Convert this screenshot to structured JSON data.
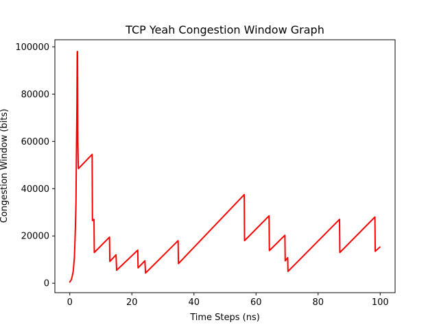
{
  "chart_data": {
    "type": "line",
    "title": "TCP Yeah Congestion Window Graph",
    "xlabel": "Time Steps (ns)",
    "ylabel": "Congestion Window (bits)",
    "xlim": [
      -4.8,
      104.8
    ],
    "ylim": [
      -4000,
      103000
    ],
    "xticks": [
      0,
      20,
      40,
      60,
      80,
      100
    ],
    "yticks": [
      0,
      20000,
      40000,
      60000,
      80000,
      100000
    ],
    "grid": false,
    "legend": "none",
    "series": [
      {
        "color": "#ff0000",
        "x": [
          0.0,
          0.5,
          0.8,
          1.1,
          1.3,
          1.5,
          1.6,
          1.8,
          2.0,
          2.1,
          2.3,
          2.4,
          2.5,
          2.6,
          2.7,
          2.75,
          2.8,
          7.2,
          7.3,
          7.8,
          7.9,
          12.8,
          12.9,
          14.9,
          15.1,
          21.9,
          22.0,
          24.2,
          24.4,
          34.9,
          35.0,
          56.2,
          56.3,
          64.2,
          64.3,
          69.3,
          69.4,
          70.2,
          70.3,
          86.9,
          87.0,
          98.3,
          98.4,
          99.9
        ],
        "y": [
          500,
          1500,
          3000,
          5000,
          8000,
          11000,
          15000,
          23000,
          34000,
          50000,
          75000,
          98000,
          98000,
          60000,
          52000,
          49000,
          48500,
          54500,
          26500,
          27000,
          13000,
          19500,
          9200,
          12000,
          5500,
          14000,
          6500,
          9500,
          4300,
          18000,
          8300,
          37500,
          18000,
          28500,
          13800,
          20300,
          9500,
          10800,
          5000,
          27000,
          13000,
          28000,
          13500,
          15300
        ]
      }
    ]
  }
}
